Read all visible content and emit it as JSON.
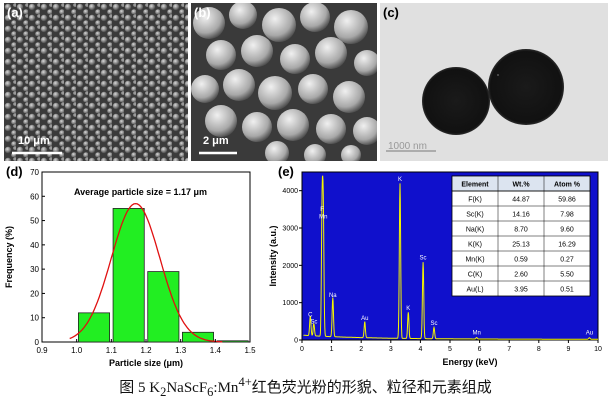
{
  "panels": {
    "a": {
      "label": "(a)",
      "scale": "10 μm"
    },
    "b": {
      "label": "(b)",
      "scale": "2 μm"
    },
    "c": {
      "label": "(c)",
      "scale": "1000 nm"
    },
    "d": {
      "label": "(d)"
    },
    "e": {
      "label": "(e)"
    }
  },
  "chart_data": [
    {
      "type": "bar",
      "panel": "d",
      "annotation": "Average particle size = 1.17 μm",
      "xlabel": "Particle size (μm)",
      "ylabel": "Frequency (%)",
      "xlim": [
        0.9,
        1.5
      ],
      "ylim": [
        0,
        70
      ],
      "xticks": [
        0.9,
        1.0,
        1.1,
        1.2,
        1.3,
        1.4,
        1.5
      ],
      "yticks": [
        0,
        10,
        20,
        30,
        40,
        50,
        60,
        70
      ],
      "bins": [
        {
          "x": 1.05,
          "value": 12
        },
        {
          "x": 1.15,
          "value": 55
        },
        {
          "x": 1.25,
          "value": 29
        },
        {
          "x": 1.35,
          "value": 4
        },
        {
          "x": 1.45,
          "value": 0.5
        }
      ],
      "fit_curve": {
        "type": "gaussian",
        "center": 1.17,
        "peak": 57,
        "sigma": 0.07
      },
      "colors": {
        "bars": "#22ee22",
        "curve": "#e01010"
      }
    },
    {
      "type": "line",
      "panel": "e",
      "xlabel": "Energy (keV)",
      "ylabel": "Intensity (a.u.)",
      "xlim": [
        0,
        10
      ],
      "ylim": [
        0,
        4500
      ],
      "xticks": [
        0,
        1,
        2,
        3,
        4,
        5,
        6,
        7,
        8,
        9,
        10
      ],
      "yticks": [
        0,
        1000,
        2000,
        3000,
        4000
      ],
      "peaks": [
        {
          "label": "C",
          "x": 0.28,
          "y": 520
        },
        {
          "label": "Sc",
          "x": 0.4,
          "y": 330
        },
        {
          "label": "F",
          "x": 0.68,
          "y": 3350
        },
        {
          "label": "Mn",
          "x": 0.72,
          "y": 3150
        },
        {
          "label": "Na",
          "x": 1.04,
          "y": 1050
        },
        {
          "label": "Au",
          "x": 2.12,
          "y": 430
        },
        {
          "label": "K",
          "x": 3.31,
          "y": 4150
        },
        {
          "label": "K",
          "x": 3.59,
          "y": 700
        },
        {
          "label": "Sc",
          "x": 4.09,
          "y": 2050
        },
        {
          "label": "Sc",
          "x": 4.46,
          "y": 300
        },
        {
          "label": "Mn",
          "x": 5.9,
          "y": 40
        },
        {
          "label": "Au",
          "x": 9.71,
          "y": 40
        }
      ],
      "colors": {
        "background": "#1010cc",
        "spectrum": "#f5f500"
      },
      "table": {
        "headers": [
          "Element",
          "Wt.%",
          "Atom %"
        ],
        "rows": [
          [
            "F(K)",
            "44.87",
            "59.86"
          ],
          [
            "Sc(K)",
            "14.16",
            "7.98"
          ],
          [
            "Na(K)",
            "8.70",
            "9.60"
          ],
          [
            "K(K)",
            "25.13",
            "16.29"
          ],
          [
            "Mn(K)",
            "0.59",
            "0.27"
          ],
          [
            "C(K)",
            "2.60",
            "5.50"
          ],
          [
            "Au(L)",
            "3.95",
            "0.51"
          ]
        ]
      }
    }
  ],
  "caption": {
    "prefix": "图 5 K",
    "sub1": "2",
    "mid1": "NaScF",
    "sub2": "6",
    "mid2": ":Mn",
    "sup": "4+",
    "suffix": "红色荧光粉的形貌、粒径和元素组成"
  }
}
